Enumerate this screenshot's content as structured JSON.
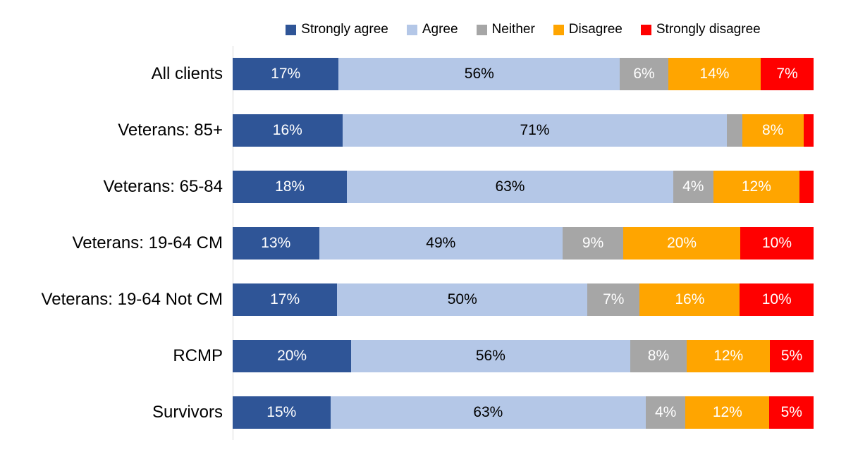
{
  "chart_data": {
    "type": "bar",
    "stacked": true,
    "orientation": "horizontal",
    "title": "",
    "xlabel": "",
    "ylabel": "",
    "xlim": [
      0,
      100
    ],
    "grid": false,
    "legend_position": "top",
    "value_suffix": "%",
    "min_label_value": 4,
    "axis_line_color": "#d9d9d9",
    "categories": [
      "All clients",
      "Veterans: 85+",
      "Veterans: 65-84",
      "Veterans: 19-64 CM",
      "Veterans: 19-64 Not CM",
      "RCMP",
      "Survivors"
    ],
    "series": [
      {
        "name": "Strongly agree",
        "color": "#2f5597",
        "label_color": "#ffffff",
        "values": [
          17,
          16,
          18,
          13,
          17,
          20,
          15
        ]
      },
      {
        "name": "Agree",
        "color": "#b4c7e7",
        "label_color": "#000000",
        "values": [
          56,
          71,
          63,
          49,
          50,
          56,
          63
        ]
      },
      {
        "name": "Neither",
        "color": "#a6a6a6",
        "label_color": "#ffffff",
        "values": [
          6,
          3,
          4,
          9,
          7,
          8,
          4
        ]
      },
      {
        "name": "Disagree",
        "color": "#ffa500",
        "label_color": "#ffffff",
        "values": [
          14,
          8,
          12,
          20,
          16,
          12,
          12
        ]
      },
      {
        "name": "Strongly disagree",
        "color": "#ff0000",
        "label_color": "#ffffff",
        "values": [
          7,
          2,
          3,
          10,
          10,
          5,
          5
        ]
      }
    ]
  }
}
